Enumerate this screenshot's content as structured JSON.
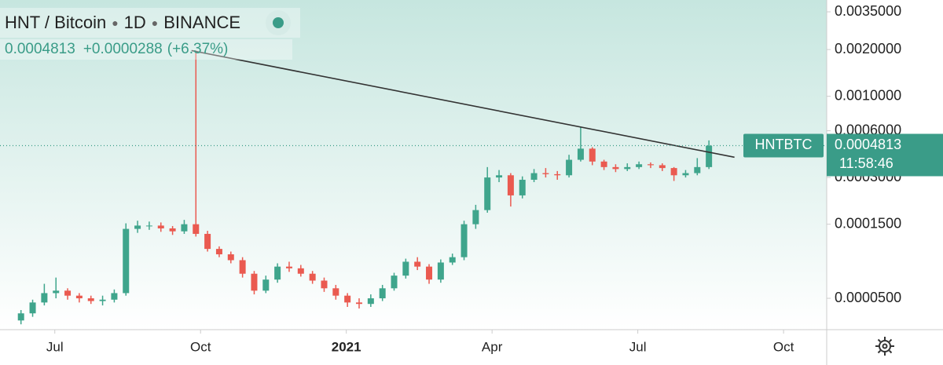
{
  "chart_data": {
    "type": "candlestick",
    "title": "HNT / Bitcoin",
    "interval": "1D",
    "exchange": "BINANCE",
    "symbol": "HNTBTC",
    "last_price": 0.0004813,
    "change": "+0.0000288",
    "change_percent": "(+6.37%)",
    "countdown": "11:58:46",
    "log_scale": true,
    "grid": false,
    "up_color": "#3fa58c",
    "down_color": "#ea5a50",
    "xlim": [
      2020.406,
      2021.824
    ],
    "ylim": [
      3.14e-05,
      0.00417
    ],
    "xticks": [
      {
        "value": 2020.5,
        "label": "Jul"
      },
      {
        "value": 2020.75,
        "label": "Oct"
      },
      2021,
      {
        "value": 2021.25,
        "label": "Apr"
      },
      {
        "value": 2021.5,
        "label": "Jul"
      },
      {
        "value": 2021.75,
        "label": "Oct"
      }
    ],
    "yticks": [
      {
        "value": 0.0035,
        "label": "0.0035000"
      },
      {
        "value": 0.002,
        "label": "0.0020000"
      },
      {
        "value": 0.001,
        "label": "0.0010000"
      },
      {
        "value": 0.0006,
        "label": "0.0006000"
      },
      {
        "value": 0.0003,
        "label": "0.0003000"
      },
      {
        "value": 0.00015,
        "label": "0.0001500"
      },
      {
        "value": 5e-05,
        "label": "0.0000500"
      }
    ],
    "x": [
      2020.442,
      2020.462,
      2020.482,
      2020.502,
      2020.522,
      2020.542,
      2020.562,
      2020.582,
      2020.602,
      2020.622,
      2020.642,
      2020.662,
      2020.682,
      2020.702,
      2020.722,
      2020.742,
      2020.762,
      2020.782,
      2020.802,
      2020.822,
      2020.842,
      2020.862,
      2020.882,
      2020.902,
      2020.922,
      2020.942,
      2020.962,
      2020.982,
      2021.002,
      2021.022,
      2021.042,
      2021.062,
      2021.082,
      2021.102,
      2021.122,
      2021.142,
      2021.162,
      2021.182,
      2021.202,
      2021.222,
      2021.242,
      2021.262,
      2021.282,
      2021.302,
      2021.322,
      2021.342,
      2021.362,
      2021.382,
      2021.402,
      2021.422,
      2021.442,
      2021.462,
      2021.482,
      2021.502,
      2021.522,
      2021.542,
      2021.562,
      2021.582,
      2021.602,
      2021.622
    ],
    "open": [
      3.6e-05,
      4e-05,
      4.7e-05,
      5.4e-05,
      5.6e-05,
      5.2e-05,
      5e-05,
      4.8e-05,
      4.9e-05,
      5.4e-05,
      0.00014,
      0.000147,
      0.000147,
      0.000141,
      0.000135,
      0.00015,
      0.00013,
      0.000104,
      9.6e-05,
      8.8e-05,
      7.2e-05,
      5.6e-05,
      6.6e-05,
      8e-05,
      7.8e-05,
      7.2e-05,
      6.5e-05,
      5.8e-05,
      5.2e-05,
      4.7e-05,
      4.6e-05,
      5e-05,
      5.8e-05,
      7e-05,
      8.6e-05,
      8e-05,
      6.6e-05,
      8.5e-05,
      9.2e-05,
      0.00015,
      0.000185,
      0.0003,
      0.00031,
      0.00023,
      0.00029,
      0.00032,
      0.000315,
      0.00031,
      0.00039,
      0.00046,
      0.00038,
      0.00035,
      0.00034,
      0.00035,
      0.000365,
      0.00036,
      0.000345,
      0.00031,
      0.00032,
      0.00035
    ],
    "high": [
      4.2e-05,
      4.9e-05,
      6.2e-05,
      6.8e-05,
      5.8e-05,
      5.4e-05,
      5.2e-05,
      5.2e-05,
      5.7e-05,
      0.000152,
      0.000158,
      0.000156,
      0.000154,
      0.000146,
      0.00016,
      0.00197,
      0.000136,
      0.000108,
      0.0001,
      9.2e-05,
      7.5e-05,
      7e-05,
      8.4e-05,
      8.6e-05,
      8.2e-05,
      7.5e-05,
      6.8e-05,
      6.1e-05,
      5.4e-05,
      5e-05,
      5.3e-05,
      6.1e-05,
      7.3e-05,
      9e-05,
      9.2e-05,
      8.3e-05,
      8.9e-05,
      9.7e-05,
      0.000158,
      0.0002,
      0.00035,
      0.000335,
      0.00032,
      0.000305,
      0.00034,
      0.000345,
      0.00033,
      0.00042,
      0.00063,
      0.00047,
      0.00039,
      0.000365,
      0.00037,
      0.00038,
      0.000375,
      0.00037,
      0.00035,
      0.000335,
      0.0004,
      0.00052
    ],
    "low": [
      3.4e-05,
      3.8e-05,
      4.5e-05,
      5e-05,
      4.9e-05,
      4.7e-05,
      4.6e-05,
      4.5e-05,
      4.7e-05,
      5.2e-05,
      0.000132,
      0.000138,
      0.000134,
      0.000128,
      0.00013,
      0.000125,
      0.0001,
      9.2e-05,
      8.4e-05,
      6.8e-05,
      5.3e-05,
      5.4e-05,
      6.3e-05,
      7.4e-05,
      6.9e-05,
      6.2e-05,
      5.5e-05,
      4.9e-05,
      4.4e-05,
      4.3e-05,
      4.4e-05,
      4.8e-05,
      5.6e-05,
      6.7e-05,
      7.6e-05,
      6.2e-05,
      6.3e-05,
      8.2e-05,
      8.8e-05,
      0.00014,
      0.000178,
      0.00028,
      0.000195,
      0.00022,
      0.00028,
      0.0003,
      0.00029,
      0.0003,
      0.00038,
      0.00036,
      0.000335,
      0.000325,
      0.00033,
      0.00034,
      0.000345,
      0.00033,
      0.000285,
      0.0003,
      0.00031,
      0.00034
    ],
    "close": [
      4e-05,
      4.7e-05,
      5.4e-05,
      5.6e-05,
      5.2e-05,
      5e-05,
      4.8e-05,
      4.9e-05,
      5.4e-05,
      0.00014,
      0.000147,
      0.000147,
      0.000141,
      0.000135,
      0.00015,
      0.00013,
      0.000104,
      9.6e-05,
      8.8e-05,
      7.2e-05,
      5.6e-05,
      6.6e-05,
      8e-05,
      7.8e-05,
      7.2e-05,
      6.5e-05,
      5.8e-05,
      5.2e-05,
      4.7e-05,
      4.6e-05,
      5e-05,
      5.8e-05,
      7e-05,
      8.6e-05,
      8e-05,
      6.6e-05,
      8.5e-05,
      9.2e-05,
      0.00015,
      0.000185,
      0.0003,
      0.00031,
      0.00023,
      0.00029,
      0.00032,
      0.000315,
      0.00031,
      0.00039,
      0.00046,
      0.00038,
      0.00035,
      0.00034,
      0.00035,
      0.000365,
      0.00036,
      0.000345,
      0.00031,
      0.00032,
      0.00035,
      0.000481
    ],
    "trendline": {
      "x": [
        2020.7345,
        2021.6658
      ],
      "y": [
        0.00197,
        0.000405
      ]
    }
  }
}
